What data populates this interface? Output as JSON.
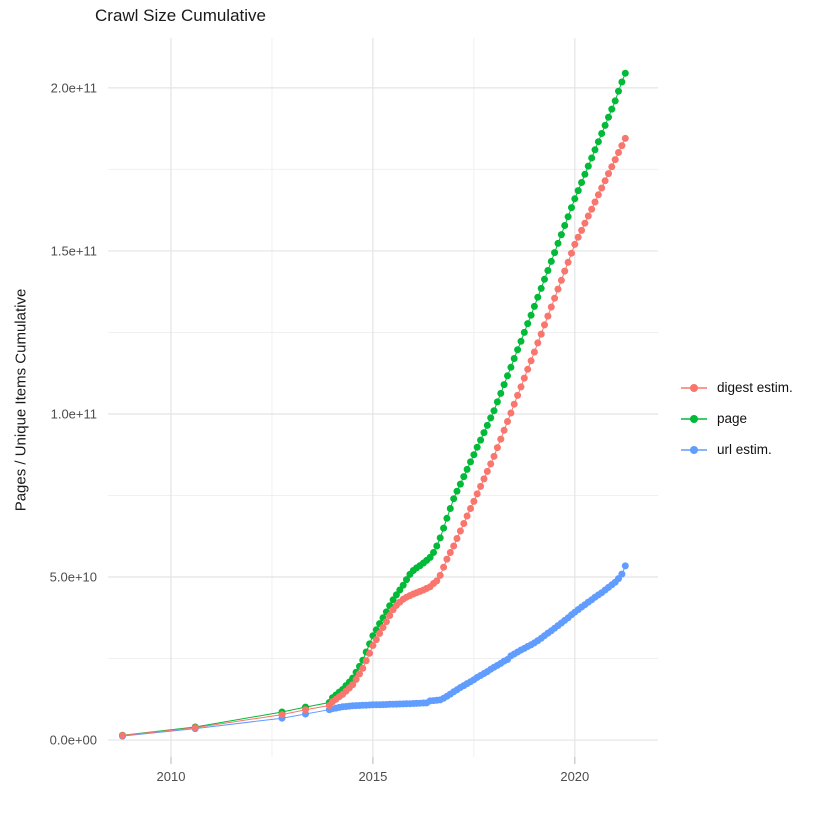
{
  "chart_data": {
    "type": "line",
    "title": "Crawl Size Cumulative",
    "xlabel": "",
    "ylabel": "Pages / Unique Items Cumulative",
    "marker": "circle",
    "grid": true,
    "legend_position": "right",
    "x_ticks": [
      2010,
      2015,
      2020
    ],
    "x_tick_labels": [
      "2010",
      "2015",
      "2020"
    ],
    "x_minor_ticks": [
      2012.5,
      2017.5
    ],
    "y_unit_multiplier": 1000000000.0,
    "y_ticks_e9": [
      0,
      50,
      100,
      150,
      200
    ],
    "y_tick_labels": [
      "0.0e+00",
      "5.0e+10",
      "1.0e+11",
      "1.5e+11",
      "2.0e+11"
    ],
    "y_minor_ticks_e9": [
      25,
      75,
      125,
      175
    ],
    "xlim": [
      2008.44,
      2022.06
    ],
    "ylim_e9": [
      -5.2,
      215.3
    ],
    "series": [
      {
        "name": "digest estim.",
        "color": "#F8766D",
        "points_e9": [
          [
            2008.8,
            1.4
          ],
          [
            2010.6,
            3.8
          ],
          [
            2012.75,
            7.8
          ],
          [
            2013.33,
            9.3
          ],
          [
            2013.92,
            10.6
          ],
          [
            2014.0,
            11.8
          ],
          [
            2014.083,
            12.5
          ],
          [
            2014.167,
            13.3
          ],
          [
            2014.25,
            14
          ],
          [
            2014.333,
            15
          ],
          [
            2014.417,
            16
          ],
          [
            2014.5,
            17
          ],
          [
            2014.583,
            18.6
          ],
          [
            2014.667,
            20.3
          ],
          [
            2014.75,
            22
          ],
          [
            2014.833,
            24.3
          ],
          [
            2014.917,
            26.6
          ],
          [
            2015.0,
            29
          ],
          [
            2015.083,
            30.8
          ],
          [
            2015.167,
            32.7
          ],
          [
            2015.25,
            34.5
          ],
          [
            2015.333,
            36.3
          ],
          [
            2015.417,
            38.2
          ],
          [
            2015.5,
            40
          ],
          [
            2015.583,
            41.3
          ],
          [
            2015.667,
            42.3
          ],
          [
            2015.75,
            43.2
          ],
          [
            2015.833,
            43.8
          ],
          [
            2015.917,
            44.3
          ],
          [
            2016.0,
            44.8
          ],
          [
            2016.083,
            45.2
          ],
          [
            2016.167,
            45.6
          ],
          [
            2016.25,
            46
          ],
          [
            2016.333,
            46.5
          ],
          [
            2016.417,
            47
          ],
          [
            2016.5,
            48
          ],
          [
            2016.583,
            48.8
          ],
          [
            2016.667,
            50.5
          ],
          [
            2016.75,
            53
          ],
          [
            2016.833,
            55.5
          ],
          [
            2016.917,
            57.5
          ],
          [
            2017.0,
            59.5
          ],
          [
            2017.083,
            61.8
          ],
          [
            2017.167,
            64.1
          ],
          [
            2017.25,
            66.4
          ],
          [
            2017.333,
            68.7
          ],
          [
            2017.417,
            71
          ],
          [
            2017.5,
            73.2
          ],
          [
            2017.583,
            75.5
          ],
          [
            2017.667,
            77.8
          ],
          [
            2017.75,
            80.1
          ],
          [
            2017.833,
            82.4
          ],
          [
            2017.917,
            84.7
          ],
          [
            2018.0,
            87
          ],
          [
            2018.083,
            89.7
          ],
          [
            2018.167,
            92.3
          ],
          [
            2018.25,
            95
          ],
          [
            2018.333,
            97.7
          ],
          [
            2018.417,
            100.3
          ],
          [
            2018.5,
            103
          ],
          [
            2018.583,
            105.7
          ],
          [
            2018.667,
            108.3
          ],
          [
            2018.75,
            111
          ],
          [
            2018.833,
            113.7
          ],
          [
            2018.917,
            116.3
          ],
          [
            2019.0,
            119
          ],
          [
            2019.083,
            121.8
          ],
          [
            2019.167,
            124.5
          ],
          [
            2019.25,
            127.3
          ],
          [
            2019.333,
            130
          ],
          [
            2019.417,
            132.8
          ],
          [
            2019.5,
            135.5
          ],
          [
            2019.583,
            138.3
          ],
          [
            2019.667,
            141
          ],
          [
            2019.75,
            143.8
          ],
          [
            2019.833,
            146.5
          ],
          [
            2019.917,
            149.3
          ],
          [
            2020.0,
            152
          ],
          [
            2020.083,
            154.2
          ],
          [
            2020.167,
            156.3
          ],
          [
            2020.25,
            158.5
          ],
          [
            2020.333,
            160.7
          ],
          [
            2020.417,
            162.8
          ],
          [
            2020.5,
            165
          ],
          [
            2020.583,
            167.2
          ],
          [
            2020.667,
            169.3
          ],
          [
            2020.75,
            171.5
          ],
          [
            2020.833,
            173.7
          ],
          [
            2020.917,
            175.8
          ],
          [
            2021.0,
            178
          ],
          [
            2021.083,
            180.2
          ],
          [
            2021.167,
            182.3
          ],
          [
            2021.25,
            184.5
          ]
        ]
      },
      {
        "name": "page",
        "color": "#00BA38",
        "points_e9": [
          [
            2008.8,
            1.5
          ],
          [
            2010.6,
            4.0
          ],
          [
            2012.75,
            8.6
          ],
          [
            2013.33,
            10.1
          ],
          [
            2013.92,
            11.5
          ],
          [
            2014.0,
            13
          ],
          [
            2014.083,
            13.8
          ],
          [
            2014.167,
            14.7
          ],
          [
            2014.25,
            15.5
          ],
          [
            2014.333,
            16.7
          ],
          [
            2014.417,
            17.8
          ],
          [
            2014.5,
            19
          ],
          [
            2014.583,
            20.8
          ],
          [
            2014.667,
            22.6
          ],
          [
            2014.75,
            24.5
          ],
          [
            2014.833,
            27
          ],
          [
            2014.917,
            29.5
          ],
          [
            2015.0,
            32
          ],
          [
            2015.083,
            33.8
          ],
          [
            2015.167,
            35.7
          ],
          [
            2015.25,
            37.5
          ],
          [
            2015.333,
            39.3
          ],
          [
            2015.417,
            41.2
          ],
          [
            2015.5,
            43
          ],
          [
            2015.583,
            44.5
          ],
          [
            2015.667,
            46
          ],
          [
            2015.75,
            47.5
          ],
          [
            2015.833,
            49.2
          ],
          [
            2015.917,
            50.8
          ],
          [
            2016.0,
            52
          ],
          [
            2016.083,
            52.8
          ],
          [
            2016.167,
            53.5
          ],
          [
            2016.25,
            54.3
          ],
          [
            2016.333,
            55.1
          ],
          [
            2016.417,
            56
          ],
          [
            2016.5,
            57.5
          ],
          [
            2016.583,
            59.5
          ],
          [
            2016.667,
            62
          ],
          [
            2016.75,
            65
          ],
          [
            2016.833,
            68
          ],
          [
            2016.917,
            71
          ],
          [
            2017.0,
            74
          ],
          [
            2017.083,
            76.3
          ],
          [
            2017.167,
            78.5
          ],
          [
            2017.25,
            80.8
          ],
          [
            2017.333,
            83
          ],
          [
            2017.417,
            85.3
          ],
          [
            2017.5,
            87.5
          ],
          [
            2017.583,
            89.8
          ],
          [
            2017.667,
            92
          ],
          [
            2017.75,
            94.3
          ],
          [
            2017.833,
            96.5
          ],
          [
            2017.917,
            98.8
          ],
          [
            2018.0,
            101
          ],
          [
            2018.083,
            103.7
          ],
          [
            2018.167,
            106.3
          ],
          [
            2018.25,
            109
          ],
          [
            2018.333,
            111.7
          ],
          [
            2018.417,
            114.3
          ],
          [
            2018.5,
            117
          ],
          [
            2018.583,
            119.7
          ],
          [
            2018.667,
            122.3
          ],
          [
            2018.75,
            125
          ],
          [
            2018.833,
            127.7
          ],
          [
            2018.917,
            130.3
          ],
          [
            2019.0,
            133
          ],
          [
            2019.083,
            135.8
          ],
          [
            2019.167,
            138.5
          ],
          [
            2019.25,
            141.3
          ],
          [
            2019.333,
            144
          ],
          [
            2019.417,
            146.8
          ],
          [
            2019.5,
            149.5
          ],
          [
            2019.583,
            152.3
          ],
          [
            2019.667,
            155
          ],
          [
            2019.75,
            157.8
          ],
          [
            2019.833,
            160.5
          ],
          [
            2019.917,
            163.3
          ],
          [
            2020.0,
            166
          ],
          [
            2020.083,
            168.5
          ],
          [
            2020.167,
            171
          ],
          [
            2020.25,
            173.5
          ],
          [
            2020.333,
            176
          ],
          [
            2020.417,
            178.5
          ],
          [
            2020.5,
            181
          ],
          [
            2020.583,
            183.5
          ],
          [
            2020.667,
            186
          ],
          [
            2020.75,
            188.5
          ],
          [
            2020.833,
            191
          ],
          [
            2020.917,
            193.5
          ],
          [
            2021.0,
            196
          ],
          [
            2021.083,
            199
          ],
          [
            2021.167,
            201.8
          ],
          [
            2021.25,
            204.5
          ]
        ]
      },
      {
        "name": "url estim.",
        "color": "#619CFF",
        "points_e9": [
          [
            2008.8,
            1.2
          ],
          [
            2010.6,
            3.5
          ],
          [
            2012.75,
            6.7
          ],
          [
            2013.33,
            8.0
          ],
          [
            2013.92,
            9.3
          ],
          [
            2014.0,
            9.6
          ],
          [
            2014.083,
            9.8
          ],
          [
            2014.167,
            10.0
          ],
          [
            2014.25,
            10.2
          ],
          [
            2014.333,
            10.3
          ],
          [
            2014.417,
            10.4
          ],
          [
            2014.5,
            10.5
          ],
          [
            2014.583,
            10.55
          ],
          [
            2014.667,
            10.6
          ],
          [
            2014.75,
            10.65
          ],
          [
            2014.833,
            10.7
          ],
          [
            2014.917,
            10.75
          ],
          [
            2015.0,
            10.8
          ],
          [
            2015.083,
            10.82
          ],
          [
            2015.167,
            10.85
          ],
          [
            2015.25,
            10.87
          ],
          [
            2015.333,
            10.9
          ],
          [
            2015.417,
            10.95
          ],
          [
            2015.5,
            11.0
          ],
          [
            2015.583,
            11.02
          ],
          [
            2015.667,
            11.05
          ],
          [
            2015.75,
            11.07
          ],
          [
            2015.833,
            11.1
          ],
          [
            2015.917,
            11.15
          ],
          [
            2016.0,
            11.2
          ],
          [
            2016.083,
            11.25
          ],
          [
            2016.167,
            11.3
          ],
          [
            2016.25,
            11.35
          ],
          [
            2016.333,
            11.4
          ],
          [
            2016.417,
            12.0
          ],
          [
            2016.5,
            12.1
          ],
          [
            2016.583,
            12.2
          ],
          [
            2016.667,
            12.3
          ],
          [
            2016.75,
            12.8
          ],
          [
            2016.833,
            13.4
          ],
          [
            2016.917,
            14.1
          ],
          [
            2017.0,
            14.8
          ],
          [
            2017.083,
            15.4
          ],
          [
            2017.167,
            16.1
          ],
          [
            2017.25,
            16.7
          ],
          [
            2017.333,
            17.3
          ],
          [
            2017.417,
            17.9
          ],
          [
            2017.5,
            18.5
          ],
          [
            2017.583,
            19.2
          ],
          [
            2017.667,
            19.8
          ],
          [
            2017.75,
            20.4
          ],
          [
            2017.833,
            21
          ],
          [
            2017.917,
            21.7
          ],
          [
            2018.0,
            22.3
          ],
          [
            2018.083,
            22.9
          ],
          [
            2018.167,
            23.5
          ],
          [
            2018.25,
            24.2
          ],
          [
            2018.333,
            24.7
          ],
          [
            2018.417,
            25.8
          ],
          [
            2018.5,
            26.4
          ],
          [
            2018.583,
            27
          ],
          [
            2018.667,
            27.6
          ],
          [
            2018.75,
            28.1
          ],
          [
            2018.833,
            28.7
          ],
          [
            2018.917,
            29.2
          ],
          [
            2019.0,
            29.8
          ],
          [
            2019.083,
            30.5
          ],
          [
            2019.167,
            31.2
          ],
          [
            2019.25,
            32
          ],
          [
            2019.333,
            32.8
          ],
          [
            2019.417,
            33.5
          ],
          [
            2019.5,
            34.3
          ],
          [
            2019.583,
            35.1
          ],
          [
            2019.667,
            35.9
          ],
          [
            2019.75,
            36.7
          ],
          [
            2019.833,
            37.5
          ],
          [
            2019.917,
            38.4
          ],
          [
            2020.0,
            39.2
          ],
          [
            2020.083,
            40
          ],
          [
            2020.167,
            40.8
          ],
          [
            2020.25,
            41.5
          ],
          [
            2020.333,
            42.3
          ],
          [
            2020.417,
            43
          ],
          [
            2020.5,
            43.8
          ],
          [
            2020.583,
            44.5
          ],
          [
            2020.667,
            45.2
          ],
          [
            2020.75,
            46
          ],
          [
            2020.833,
            46.8
          ],
          [
            2020.917,
            47.6
          ],
          [
            2021.0,
            48.4
          ],
          [
            2021.083,
            49.5
          ],
          [
            2021.167,
            50.9
          ],
          [
            2021.25,
            53.4
          ]
        ]
      }
    ]
  },
  "style": {
    "grid_major_color": "#E4E4E4",
    "grid_minor_color": "#F0F0F0",
    "tick_color": "#C2C2C2",
    "axis_text_color": "#4D4D4D",
    "title_color": "#1A1A1A"
  }
}
